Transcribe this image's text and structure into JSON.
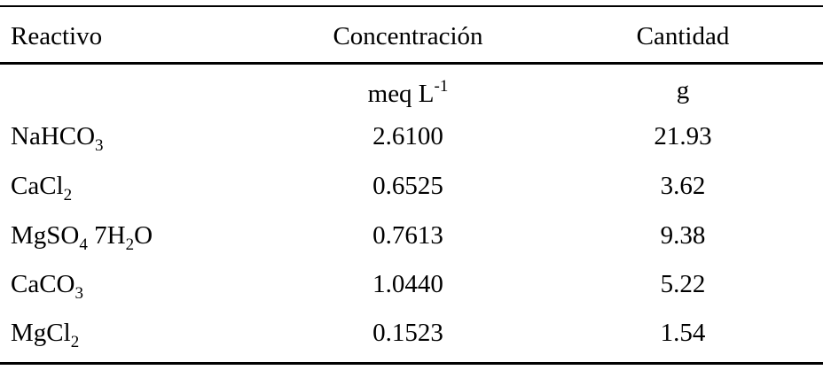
{
  "table": {
    "header": [
      "Reactivo",
      "Concentración",
      "Cantidad"
    ],
    "units": [
      null,
      [
        {
          "text": "meq L"
        },
        {
          "sup": "-1"
        }
      ],
      [
        {
          "text": "g"
        }
      ]
    ],
    "rows": [
      [
        [
          {
            "text": "NaHCO"
          },
          {
            "sub": "3"
          }
        ],
        "2.6100",
        "21.93"
      ],
      [
        [
          {
            "text": "CaCl"
          },
          {
            "sub": "2"
          }
        ],
        "0.6525",
        "3.62"
      ],
      [
        [
          {
            "text": "MgSO"
          },
          {
            "sub": "4"
          },
          {
            "text": " 7H"
          },
          {
            "sub": "2"
          },
          {
            "text": "O"
          }
        ],
        "0.7613",
        "9.38"
      ],
      [
        [
          {
            "text": "CaCO"
          },
          {
            "sub": "3"
          }
        ],
        "1.0440",
        "5.22"
      ],
      [
        [
          {
            "text": "MgCl"
          },
          {
            "sub": "2"
          }
        ],
        "0.1523",
        "1.54"
      ]
    ]
  }
}
